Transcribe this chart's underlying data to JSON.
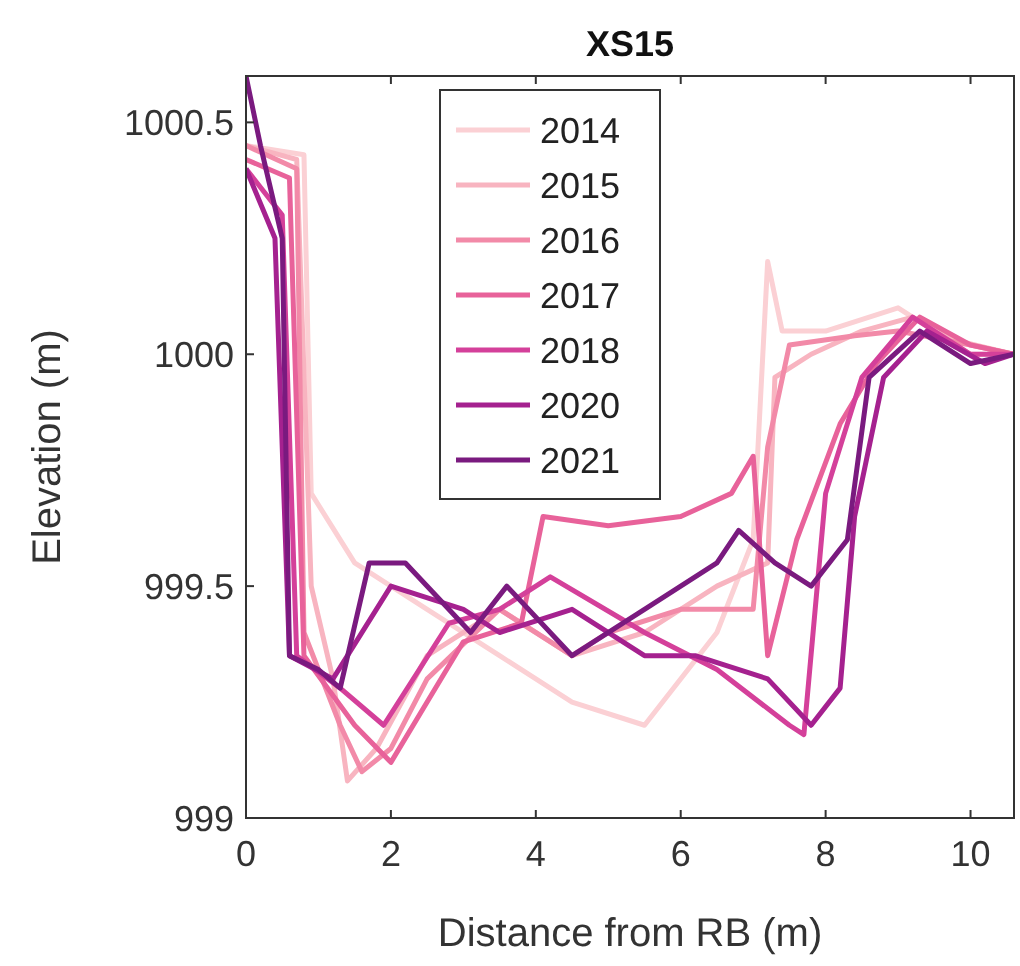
{
  "chart_data": {
    "type": "line",
    "title": "XS15",
    "xlabel": "Distance from RB (m)",
    "ylabel": "Elevation (m)",
    "xlim": [
      0,
      10.6
    ],
    "ylim": [
      999,
      1000.6
    ],
    "xticks": [
      0,
      2,
      4,
      6,
      8,
      10
    ],
    "yticks": [
      999,
      999.5,
      1000,
      {
        "value": 1000.5,
        "label": "1000.5"
      }
    ],
    "legend": "top",
    "grid": false,
    "series": [
      {
        "name": "2014",
        "color": "#fbd0d4",
        "x": [
          0,
          0.8,
          0.9,
          1.5,
          2.5,
          3.5,
          4.5,
          5.5,
          6.5,
          7,
          7.2,
          7.4,
          8,
          9,
          9.5,
          10,
          10.6
        ],
        "values": [
          1000.45,
          1000.43,
          999.7,
          999.55,
          999.45,
          999.35,
          999.25,
          999.2,
          999.4,
          999.6,
          1000.2,
          1000.05,
          1000.05,
          1000.1,
          1000.05,
          1000,
          1000
        ]
      },
      {
        "name": "2015",
        "color": "#f8b4c0",
        "x": [
          0,
          0.7,
          0.9,
          1.2,
          1.4,
          1.8,
          2.5,
          3.5,
          4.5,
          5.5,
          6.5,
          7.2,
          7.3,
          7.8,
          8.5,
          9.2,
          9.8,
          10.6
        ],
        "values": [
          1000.45,
          1000.42,
          999.5,
          999.3,
          999.08,
          999.15,
          999.35,
          999.45,
          999.35,
          999.4,
          999.5,
          999.55,
          999.95,
          1000,
          1000.05,
          1000.08,
          1000.03,
          1000
        ]
      },
      {
        "name": "2016",
        "color": "#f28aa8",
        "x": [
          0,
          0.7,
          0.8,
          1.3,
          1.6,
          2,
          2.5,
          3.5,
          4.5,
          5,
          6,
          7,
          7.2,
          7.5,
          8.4,
          9,
          10,
          10.6
        ],
        "values": [
          1000.45,
          1000.4,
          999.4,
          999.2,
          999.1,
          999.15,
          999.3,
          999.45,
          999.35,
          999.4,
          999.45,
          999.45,
          999.8,
          1000.02,
          1000.04,
          1000.05,
          1000.02,
          1000
        ]
      },
      {
        "name": "2017",
        "color": "#e8629a",
        "x": [
          0,
          0.6,
          0.8,
          1.5,
          2,
          2.5,
          3,
          3.8,
          4.1,
          5,
          6,
          6.7,
          7,
          7.2,
          7.6,
          8.2,
          8.7,
          9.3,
          10,
          10.6
        ],
        "values": [
          1000.42,
          1000.38,
          999.35,
          999.2,
          999.12,
          999.25,
          999.38,
          999.42,
          999.65,
          999.63,
          999.65,
          999.7,
          999.78,
          999.35,
          999.6,
          999.85,
          999.98,
          1000.08,
          1000.02,
          1000
        ]
      },
      {
        "name": "2018",
        "color": "#d4409a",
        "x": [
          0,
          0.5,
          0.7,
          1.3,
          1.9,
          2.8,
          3.5,
          4.2,
          5.5,
          6.5,
          7.5,
          7.7,
          8,
          8.5,
          9.2,
          10,
          10.6
        ],
        "values": [
          1000.4,
          1000.3,
          999.35,
          999.28,
          999.2,
          999.42,
          999.45,
          999.52,
          999.4,
          999.32,
          999.2,
          999.18,
          999.7,
          999.95,
          1000.08,
          1000,
          1000
        ]
      },
      {
        "name": "2020",
        "color": "#a5218f",
        "x": [
          0,
          0.4,
          0.6,
          1.2,
          2,
          3,
          3.5,
          4.5,
          5.5,
          6.2,
          7.2,
          7.8,
          8.2,
          8.4,
          8.8,
          9.4,
          10.2,
          10.6
        ],
        "values": [
          1000.4,
          1000.25,
          999.35,
          999.3,
          999.5,
          999.45,
          999.4,
          999.45,
          999.35,
          999.35,
          999.3,
          999.2,
          999.28,
          999.65,
          999.95,
          1000.05,
          999.98,
          1000
        ]
      },
      {
        "name": "2021",
        "color": "#7a1a7f",
        "x": [
          0,
          0.2,
          0.5,
          0.6,
          1,
          1.3,
          1.7,
          2.2,
          3.1,
          3.6,
          4.5,
          5.5,
          6.5,
          6.8,
          7.3,
          7.8,
          8.3,
          8.6,
          9.3,
          10,
          10.6
        ],
        "values": [
          1000.6,
          1000.45,
          1000.25,
          999.35,
          999.32,
          999.28,
          999.55,
          999.55,
          999.4,
          999.5,
          999.35,
          999.45,
          999.55,
          999.62,
          999.55,
          999.5,
          999.6,
          999.95,
          1000.05,
          999.98,
          1000
        ]
      }
    ]
  }
}
